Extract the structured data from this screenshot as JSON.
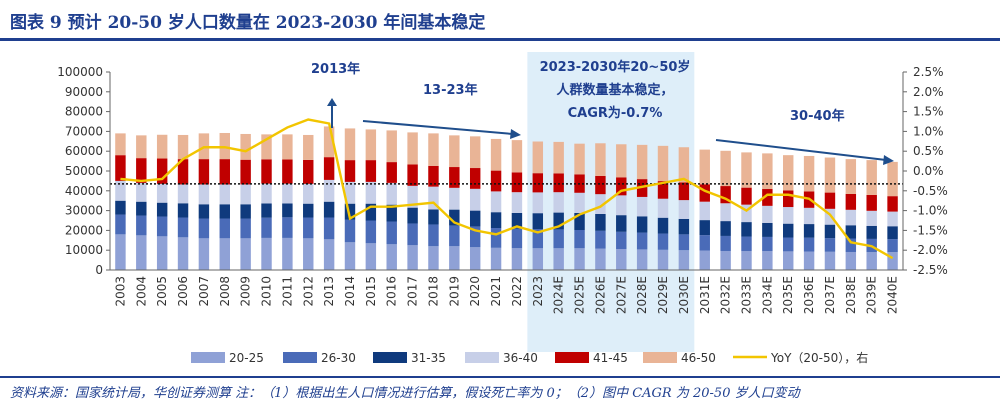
{
  "title": "图表 9  预计 20-50 岁人口数量在 2023-2030 年间基本稳定",
  "footer": "资料来源：国家统计局，华创证券测算 注：（1）根据出生人口情况进行估算，假设死亡率为 0；（2）图中 CAGR 为 20-50 岁人口变动",
  "colors": {
    "brand": "#1f3f8f",
    "20-25": "#8fa1d6",
    "26-30": "#4a6bb8",
    "31-35": "#0f3a7d",
    "36-40": "#c7cfe8",
    "41-45": "#c00000",
    "46-50": "#e9b496",
    "yoy": "#f2c500",
    "highlight": "#deeef9",
    "arrow": "#1f4e8c"
  },
  "chart_data": {
    "type": "bar",
    "stacked": true,
    "categories": [
      "2003",
      "2004",
      "2005",
      "2006",
      "2007",
      "2008",
      "2009",
      "2010",
      "2011",
      "2012",
      "2013",
      "2014",
      "2015",
      "2016",
      "2017",
      "2018",
      "2019",
      "2020",
      "2021",
      "2022",
      "2023",
      "2024E",
      "2025E",
      "2026E",
      "2027E",
      "2028E",
      "2029E",
      "2030E",
      "2031E",
      "2032E",
      "2033E",
      "2034E",
      "2035E",
      "2036E",
      "2037E",
      "2038E",
      "2039E",
      "2040E"
    ],
    "series": [
      {
        "name": "20-25",
        "values": [
          18000,
          17500,
          17000,
          16500,
          16000,
          16000,
          16000,
          16200,
          16200,
          16000,
          15500,
          14000,
          13500,
          13000,
          12500,
          12000,
          12000,
          11500,
          11200,
          11000,
          11000,
          11000,
          11000,
          10800,
          10600,
          10400,
          10200,
          10000,
          9800,
          9600,
          9500,
          9500,
          9400,
          9300,
          9200,
          9100,
          9000,
          9000
        ]
      },
      {
        "name": "26-30",
        "values": [
          10000,
          10000,
          10000,
          10000,
          10000,
          10000,
          10000,
          10200,
          10400,
          10500,
          11000,
          11500,
          11500,
          11500,
          11000,
          11000,
          10500,
          10500,
          10000,
          9800,
          9700,
          9500,
          9200,
          9000,
          8700,
          8500,
          8200,
          8000,
          7800,
          7600,
          7400,
          7200,
          7000,
          7000,
          6900,
          6800,
          6700,
          6600
        ]
      },
      {
        "name": "31-35",
        "values": [
          7000,
          7000,
          7000,
          7200,
          7200,
          7200,
          7200,
          7200,
          7000,
          7000,
          8000,
          8000,
          8500,
          8500,
          8000,
          7600,
          8000,
          8000,
          8000,
          8000,
          8000,
          8500,
          8600,
          8500,
          8400,
          8200,
          8000,
          7800,
          7600,
          7500,
          7300,
          7100,
          7000,
          6900,
          6800,
          6700,
          6600,
          6500
        ]
      },
      {
        "name": "36-40",
        "values": [
          10000,
          9500,
          9500,
          9500,
          10000,
          10000,
          10000,
          10000,
          10000,
          10000,
          11000,
          11000,
          11000,
          11000,
          11000,
          11500,
          11000,
          11000,
          10500,
          10500,
          10500,
          10300,
          10200,
          10000,
          10000,
          9800,
          9600,
          9500,
          9300,
          9000,
          8800,
          8600,
          8400,
          8200,
          8000,
          7800,
          7600,
          7400
        ]
      },
      {
        "name": "41-45",
        "values": [
          13000,
          12500,
          12800,
          12800,
          12800,
          12800,
          12500,
          12300,
          12200,
          12100,
          11500,
          11000,
          11000,
          10500,
          10800,
          10500,
          10500,
          10500,
          10500,
          10000,
          9700,
          9500,
          9300,
          9200,
          9100,
          9000,
          8900,
          8900,
          8800,
          8700,
          8600,
          8500,
          8400,
          8300,
          8200,
          8000,
          8000,
          7800
        ]
      },
      {
        "name": "46-50",
        "values": [
          11000,
          11500,
          12000,
          12200,
          13000,
          13200,
          13000,
          12600,
          12700,
          12600,
          15500,
          16000,
          15500,
          16000,
          16200,
          16400,
          16000,
          16000,
          16000,
          16300,
          16000,
          15900,
          15500,
          16500,
          16700,
          17300,
          17800,
          17800,
          17500,
          17800,
          17800,
          18000,
          17800,
          17900,
          17700,
          17600,
          17600,
          17300
        ]
      }
    ],
    "line": {
      "name": "YoY（20-50），右",
      "axis": "right",
      "values": [
        -0.2,
        -0.25,
        -0.2,
        0.3,
        0.6,
        0.6,
        0.5,
        0.8,
        1.1,
        1.3,
        1.2,
        -1.2,
        -0.9,
        -0.9,
        -0.85,
        -0.8,
        -1.3,
        -1.5,
        -1.6,
        -1.4,
        -1.55,
        -1.4,
        -1.1,
        -0.9,
        -0.5,
        -0.4,
        -0.3,
        -0.2,
        -0.5,
        -0.7,
        -1.0,
        -0.6,
        -0.6,
        -0.7,
        -1.1,
        -1.8,
        -1.9,
        -2.2
      ]
    },
    "yleft": {
      "min": 0,
      "max": 100000,
      "ticks": [
        "0",
        "10000",
        "20000",
        "30000",
        "40000",
        "50000",
        "60000",
        "70000",
        "80000",
        "90000",
        "100000"
      ]
    },
    "yright": {
      "min": -2.5,
      "max": 2.5,
      "ticks": [
        "-2.5%",
        "-2.0%",
        "-1.5%",
        "-1.0%",
        "-0.5%",
        "0.0%",
        "0.5%",
        "1.0%",
        "1.5%",
        "2.0%",
        "2.5%"
      ]
    },
    "reference_line": 43500,
    "highlight_range": [
      "2023",
      "2030E"
    ],
    "annotations": [
      {
        "text": "2013年"
      },
      {
        "text": "13-23年"
      },
      {
        "text": "2023-2030年20~50岁"
      },
      {
        "text": "人群数量基本稳定，"
      },
      {
        "text": "CAGR为-0.7%"
      },
      {
        "text": "30-40年"
      }
    ],
    "legend_position": "bottom",
    "legend": [
      "20-25",
      "26-30",
      "31-35",
      "36-40",
      "41-45",
      "46-50",
      "YoY（20-50），右"
    ]
  }
}
